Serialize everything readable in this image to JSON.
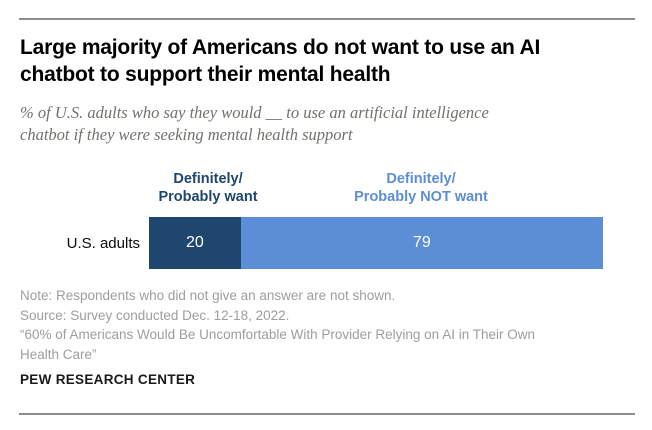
{
  "header": {
    "title": "Large majority of Americans do not want to use an AI\nchatbot to support their mental health",
    "subtitle": "% of U.S. adults who say they would __ to use an artificial intelligence\nchatbot if they were seeking mental health support"
  },
  "chart_data": {
    "type": "bar",
    "subtype": "horizontal-stacked",
    "unit": "percent",
    "categories": [
      "U.S. adults"
    ],
    "series": [
      {
        "name": "Definitely/\nProbably want",
        "values": [
          20
        ],
        "color": "#1f466e"
      },
      {
        "name": "Definitely/\nProbably NOT want",
        "values": [
          79
        ],
        "color": "#5c8ed6"
      }
    ],
    "xlim": [
      0,
      100
    ],
    "value_label_color": "#ffffff",
    "legend_position": "above-bar-segments",
    "grid": false
  },
  "footer": {
    "note": "Note: Respondents who did not give an answer are not shown.",
    "source": "Source: Survey conducted Dec. 12-18, 2022.",
    "report_title": "“60% of Americans Would Be Uncomfortable With Provider Relying on AI in Their Own\nHealth Care”",
    "brand": "PEW RESEARCH CENTER"
  },
  "colors": {
    "title": "#000000",
    "subtitle": "#74706b",
    "notes": "#9e9e9e",
    "rule": "#8e8e8e",
    "background": "#ffffff"
  }
}
